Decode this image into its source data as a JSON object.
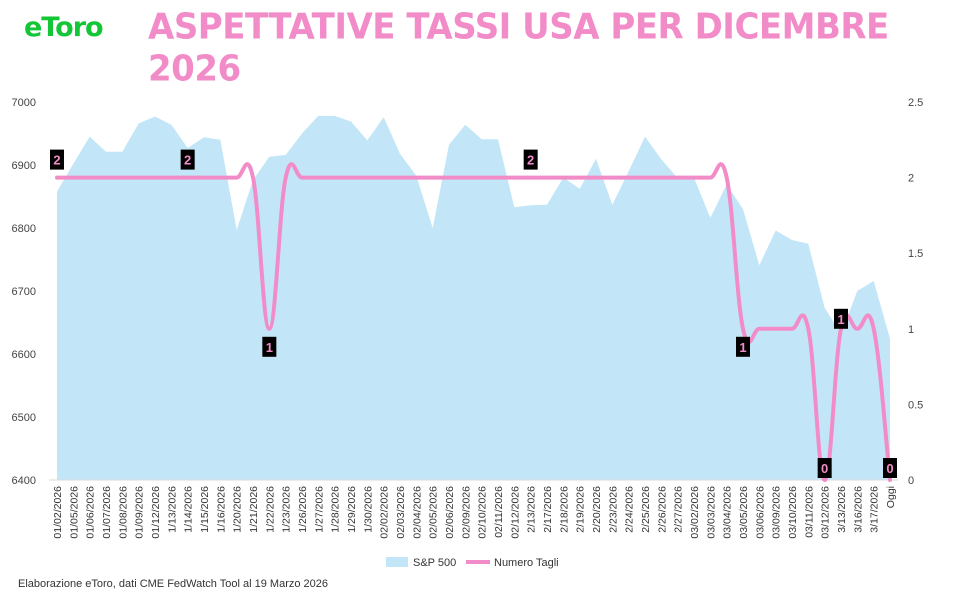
{
  "brand": {
    "logo_text": "eToro",
    "logo_color": "#13c636"
  },
  "title": "ASPETTATIVE TASSI USA PER DICEMBRE 2026",
  "footer": "Elaborazione eToro, dati CME FedWatch Tool al 19 Marzo 2026",
  "chart_data": {
    "type": "area",
    "title": "ASPETTATIVE TASSI USA PER DICEMBRE 2026",
    "categories": [
      "01/02/2026",
      "01/05/2026",
      "01/06/2026",
      "01/07/2026",
      "01/08/2026",
      "01/09/2026",
      "01/12/2026",
      "1/13/2026",
      "1/14/2026",
      "1/15/2026",
      "1/16/2026",
      "1/20/2026",
      "1/21/2026",
      "1/22/2026",
      "1/23/2026",
      "1/26/2026",
      "1/27/2026",
      "1/28/2026",
      "1/29/2026",
      "1/30/2026",
      "02/02/2026",
      "02/03/2026",
      "02/04/2026",
      "02/05/2026",
      "02/06/2026",
      "02/09/2026",
      "02/10/2026",
      "02/11/2026",
      "02/12/2026",
      "2/13/2026",
      "2/17/2026",
      "2/18/2026",
      "2/19/2026",
      "2/20/2026",
      "2/23/2026",
      "2/24/2026",
      "2/25/2026",
      "2/26/2026",
      "2/27/2026",
      "03/02/2026",
      "03/03/2026",
      "03/04/2026",
      "03/05/2026",
      "03/06/2026",
      "03/09/2026",
      "03/10/2026",
      "03/11/2026",
      "03/12/2026",
      "3/13/2026",
      "3/16/2026",
      "3/17/2026",
      "Oggi"
    ],
    "y_left": {
      "min": 6400,
      "max": 7000,
      "ticks": [
        6400,
        6500,
        6600,
        6700,
        6800,
        6900,
        7000
      ]
    },
    "y_right": {
      "min": 0,
      "max": 2.5,
      "ticks": [
        "0",
        "0.5",
        "1",
        "1.5",
        "2",
        "2.5"
      ]
    },
    "series": [
      {
        "name": "S&P 500",
        "axis": "left",
        "color": "#c2e6f8",
        "values": [
          6858,
          6902,
          6945,
          6921,
          6921,
          6966,
          6977,
          6964,
          6927,
          6944,
          6940,
          6797,
          6876,
          6913,
          6916,
          6950,
          6978,
          6978,
          6969,
          6939,
          6976,
          6918,
          6883,
          6800,
          6932,
          6964,
          6941,
          6941,
          6833,
          6836,
          6837,
          6880,
          6862,
          6910,
          6837,
          6890,
          6945,
          6909,
          6879,
          6880,
          6816,
          6869,
          6830,
          6741,
          6796,
          6781,
          6775,
          6673,
          6632,
          6700,
          6716,
          6624
        ]
      },
      {
        "name": "Numero Tagli",
        "axis": "right",
        "color": "#f28cc8",
        "values": [
          2,
          2,
          2,
          2,
          2,
          2,
          2,
          2,
          2,
          2,
          2,
          2,
          2,
          1,
          2,
          2,
          2,
          2,
          2,
          2,
          2,
          2,
          2,
          2,
          2,
          2,
          2,
          2,
          2,
          2,
          2,
          2,
          2,
          2,
          2,
          2,
          2,
          2,
          2,
          2,
          2,
          2,
          1,
          1,
          1,
          1,
          1,
          0,
          1,
          1,
          1,
          0
        ]
      }
    ],
    "data_labels": [
      {
        "index": 0,
        "text": "2"
      },
      {
        "index": 8,
        "text": "2"
      },
      {
        "index": 13,
        "text": "1"
      },
      {
        "index": 29,
        "text": "2"
      },
      {
        "index": 42,
        "text": "1"
      },
      {
        "index": 47,
        "text": "0"
      },
      {
        "index": 48,
        "text": "1"
      },
      {
        "index": 51,
        "text": "0"
      }
    ],
    "legend": {
      "position": "bottom"
    },
    "grid": false
  }
}
